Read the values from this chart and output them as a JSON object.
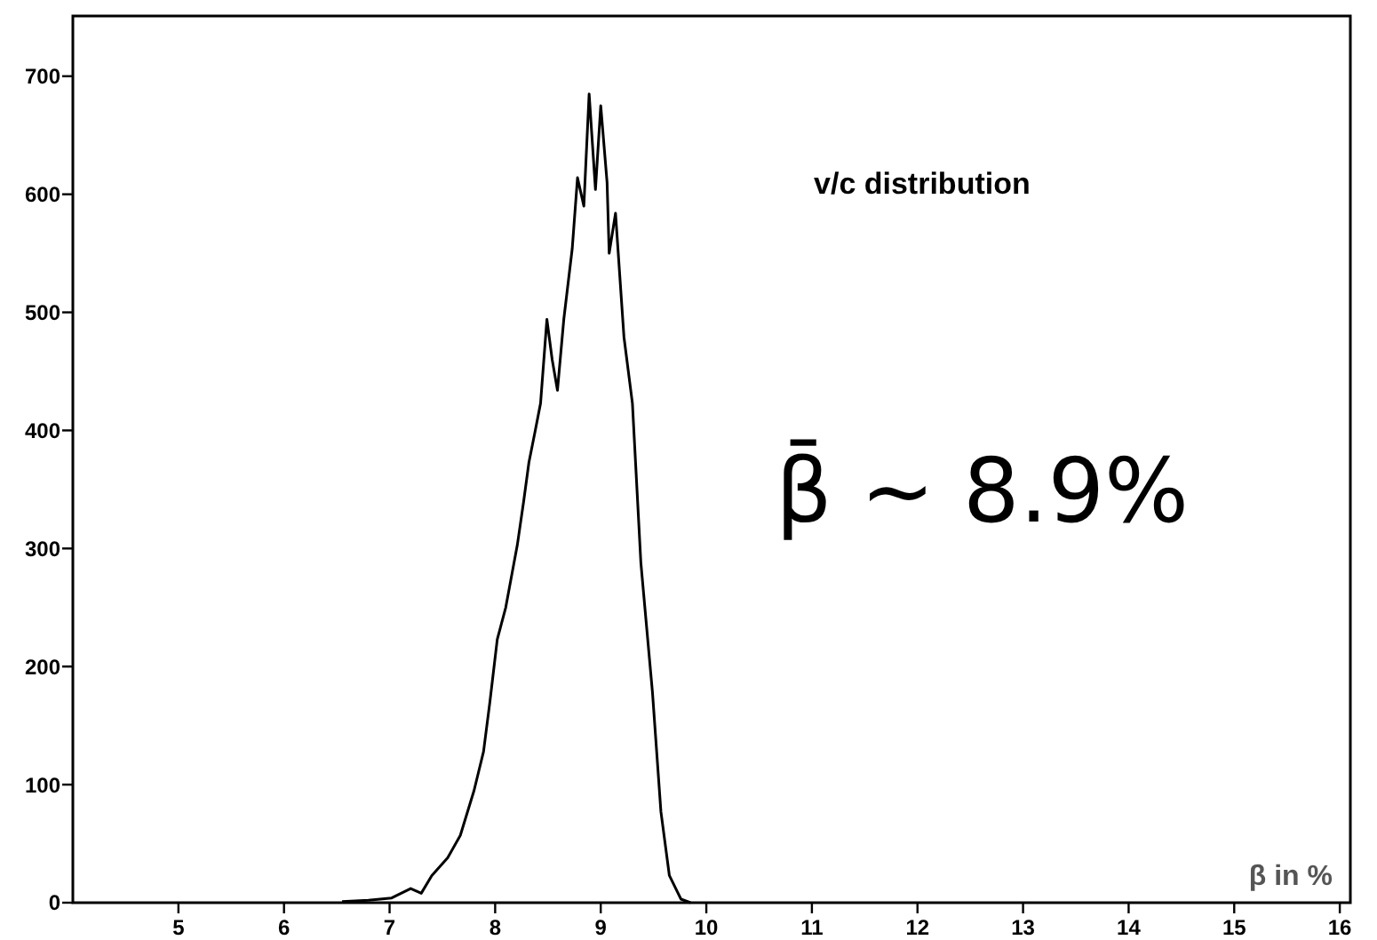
{
  "chart_data": {
    "type": "line",
    "xlabel": "β in %",
    "annotations": [
      "v/c distribution",
      "β̄ ~ 8.9%"
    ],
    "xlim": [
      4,
      16.1
    ],
    "xticks": [
      5,
      6,
      7,
      8,
      9,
      10,
      11,
      12,
      13,
      14,
      15,
      16
    ],
    "ylim": [
      0,
      751
    ],
    "yticks": [
      0,
      100,
      200,
      300,
      400,
      500,
      600,
      700
    ],
    "grid": false,
    "marker": "none",
    "line_style": "solid",
    "series": [
      {
        "color": "#000000",
        "x": [
          6.55,
          6.8,
          7.02,
          7.2,
          7.3,
          7.4,
          7.55,
          7.67,
          7.8,
          7.89,
          7.95,
          8.02,
          8.1,
          8.21,
          8.27,
          8.32,
          8.38,
          8.43,
          8.49,
          8.54,
          8.59,
          8.65,
          8.73,
          8.78,
          8.84,
          8.89,
          8.95,
          9.0,
          9.06,
          9.08,
          9.14,
          9.22,
          9.3,
          9.38,
          9.49,
          9.57,
          9.65,
          9.76,
          9.85
        ],
        "values": [
          1,
          2,
          4,
          12,
          8,
          23,
          38,
          57,
          95,
          128,
          170,
          223,
          250,
          303,
          340,
          373,
          400,
          423,
          494,
          460,
          434,
          494,
          554,
          614,
          590,
          685,
          604,
          675,
          610,
          550,
          584,
          479,
          423,
          288,
          178,
          77,
          23,
          3,
          0
        ]
      }
    ]
  }
}
